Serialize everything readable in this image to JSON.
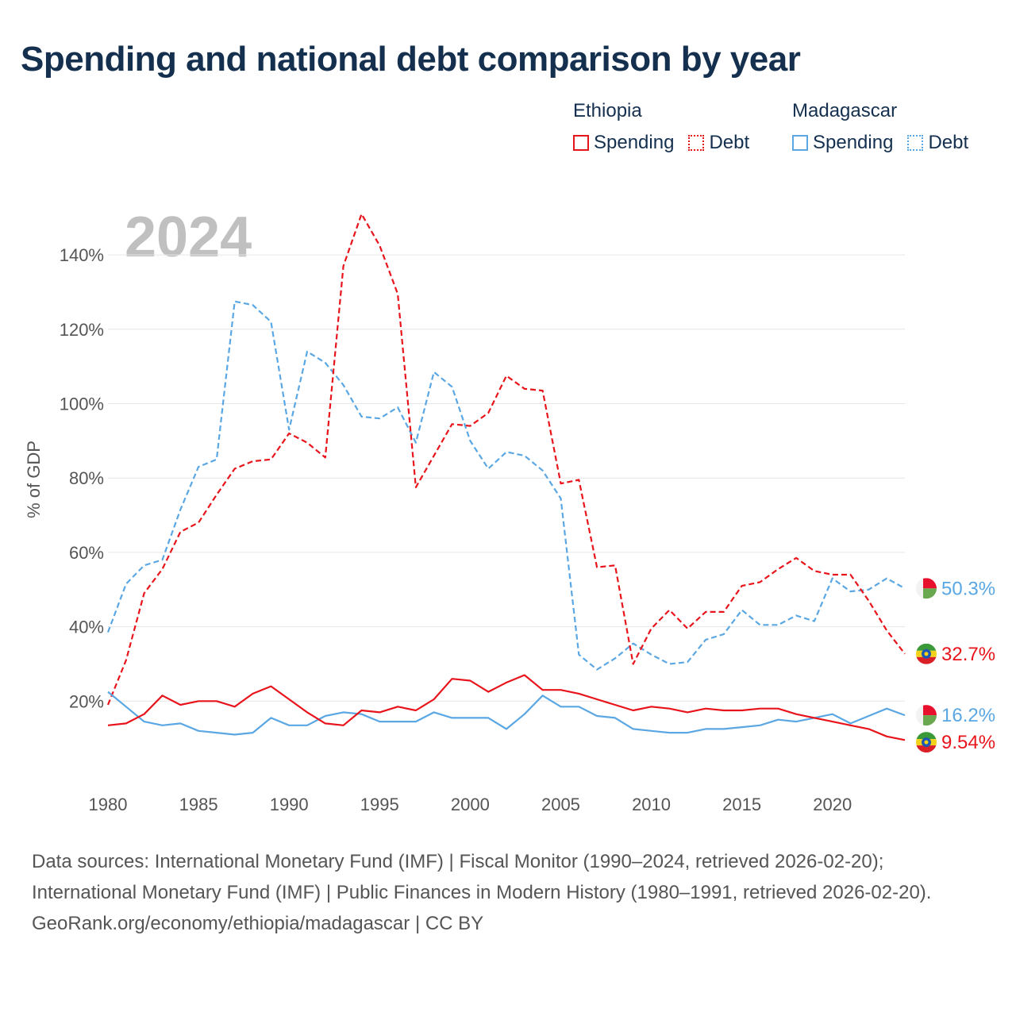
{
  "title": "Spending and national debt comparison by year",
  "legend": {
    "groups": [
      {
        "name": "Ethiopia",
        "color": "#e8141b",
        "items": [
          {
            "label": "Spending",
            "style": "solid"
          },
          {
            "label": "Debt",
            "style": "dotted"
          }
        ]
      },
      {
        "name": "Madagascar",
        "color": "#5aa7e3",
        "items": [
          {
            "label": "Spending",
            "style": "solid"
          },
          {
            "label": "Debt",
            "style": "dotted"
          }
        ]
      }
    ]
  },
  "sources": {
    "line1": "Data sources: International Monetary Fund (IMF) | Fiscal Monitor (1990–2024, retrieved 2026-02-20); International Monetary Fund (IMF) | Public Finances in Modern History (1980–1991, retrieved 2026-02-20).",
    "line2": "GeoRank.org/economy/ethiopia/madagascar | CC BY"
  },
  "chart_data": {
    "type": "line",
    "year_label": "2024",
    "ylabel": "% of GDP",
    "xlabel": "",
    "xlim": [
      1980,
      2024
    ],
    "ylim": [
      0,
      150
    ],
    "x_ticks": [
      1980,
      1985,
      1990,
      1995,
      2000,
      2005,
      2010,
      2015,
      2020
    ],
    "y_ticks": [
      20,
      40,
      60,
      80,
      100,
      120,
      140
    ],
    "y_tick_labels": [
      "20%",
      "40%",
      "60%",
      "80%",
      "100%",
      "120%",
      "140%"
    ],
    "x": [
      1980,
      1981,
      1982,
      1983,
      1984,
      1985,
      1986,
      1987,
      1988,
      1989,
      1990,
      1991,
      1992,
      1993,
      1994,
      1995,
      1996,
      1997,
      1998,
      1999,
      2000,
      2001,
      2002,
      2003,
      2004,
      2005,
      2006,
      2007,
      2008,
      2009,
      2010,
      2011,
      2012,
      2013,
      2014,
      2015,
      2016,
      2017,
      2018,
      2019,
      2020,
      2021,
      2022,
      2023,
      2024
    ],
    "series": [
      {
        "name": "Madagascar Debt",
        "country": "Madagascar",
        "kind": "Debt",
        "color": "#5aa7e3",
        "dashed": true,
        "end_label": "50.3%",
        "flag": "madagascar",
        "values": [
          38.5,
          51.5,
          56.5,
          58,
          71.5,
          83,
          85,
          127.5,
          126.5,
          122,
          93,
          114,
          111,
          105,
          96.5,
          96,
          99,
          89.5,
          108.5,
          104.5,
          90,
          82.5,
          87,
          86,
          82,
          74.5,
          32.5,
          28.5,
          31.5,
          35.5,
          32.5,
          30,
          30.5,
          36.5,
          38,
          44.5,
          40.5,
          40.5,
          43,
          41.5,
          53,
          49.5,
          50,
          53,
          50.3
        ]
      },
      {
        "name": "Ethiopia Debt",
        "country": "Ethiopia",
        "kind": "Debt",
        "color": "#e8141b",
        "dashed": true,
        "end_label": "32.7%",
        "flag": "ethiopia",
        "values": [
          19,
          31,
          49,
          55.5,
          65.5,
          68,
          75.5,
          82.5,
          84.5,
          85,
          92,
          89.5,
          85.5,
          137,
          151,
          142.5,
          129.5,
          77.5,
          86,
          94.5,
          94,
          97.5,
          107.5,
          104,
          103.5,
          78.5,
          79.5,
          56,
          56.5,
          30,
          39.5,
          44.5,
          39.5,
          44,
          44,
          51,
          52,
          55.5,
          58.5,
          55,
          54,
          54,
          47,
          39,
          32.7
        ]
      },
      {
        "name": "Madagascar Spending",
        "country": "Madagascar",
        "kind": "Spending",
        "color": "#5aa7e3",
        "dashed": false,
        "end_label": "16.2%",
        "flag": "madagascar",
        "values": [
          22.5,
          18.5,
          14.5,
          13.5,
          14,
          12,
          11.5,
          11,
          11.5,
          15.5,
          13.5,
          13.5,
          16,
          17,
          16.5,
          14.5,
          14.5,
          14.5,
          17,
          15.5,
          15.5,
          15.5,
          12.5,
          16.5,
          21.5,
          18.5,
          18.5,
          16,
          15.5,
          12.5,
          12,
          11.5,
          11.5,
          12.5,
          12.5,
          13,
          13.5,
          15,
          14.5,
          15.5,
          16.5,
          14,
          16,
          18,
          16.2
        ]
      },
      {
        "name": "Ethiopia Spending",
        "country": "Ethiopia",
        "kind": "Spending",
        "color": "#e8141b",
        "dashed": false,
        "end_label": "9.54%",
        "flag": "ethiopia",
        "values": [
          13.5,
          14,
          16.5,
          21.5,
          19,
          20,
          20,
          18.5,
          22,
          24,
          20.5,
          17,
          14,
          13.5,
          17.5,
          17,
          18.5,
          17.5,
          20.5,
          26,
          25.5,
          22.5,
          25,
          27,
          23,
          23,
          22,
          20.5,
          19,
          17.5,
          18.5,
          18,
          17,
          18,
          17.5,
          17.5,
          18,
          18,
          16.5,
          15.5,
          14.5,
          13.5,
          12.5,
          10.5,
          9.54
        ]
      }
    ]
  }
}
